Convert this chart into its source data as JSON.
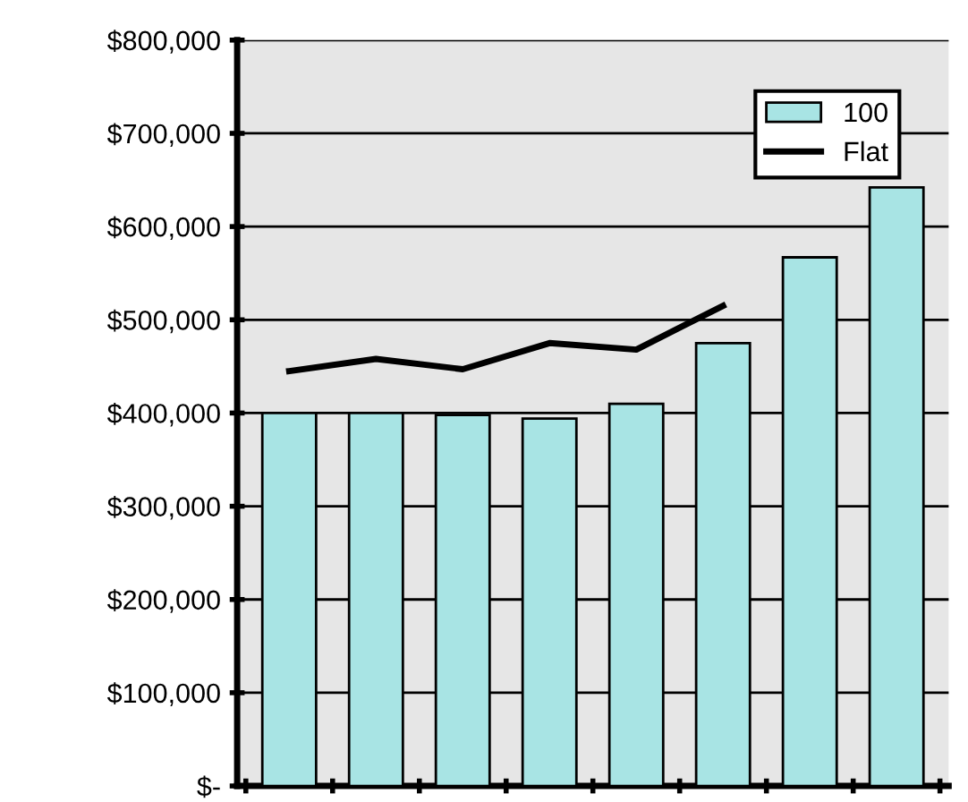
{
  "chart_data": {
    "type": "bar",
    "categories": [
      null,
      null,
      null,
      null,
      null,
      null,
      null,
      null
    ],
    "series": [
      {
        "name": "100",
        "color": "#a8e4e4",
        "values": [
          400000,
          400000,
          398000,
          394000,
          410000,
          475000,
          567000,
          642000
        ]
      },
      {
        "name": "Flat",
        "type": "line",
        "color": "#000000",
        "values": [
          445000,
          458000,
          447000,
          475000,
          468000,
          515000,
          null,
          null
        ]
      }
    ],
    "ylim": [
      0,
      800000
    ],
    "yticks": [
      {
        "value": 0,
        "label": "$-"
      },
      {
        "value": 100000,
        "label": "$100,000"
      },
      {
        "value": 200000,
        "label": "$200,000"
      },
      {
        "value": 300000,
        "label": "$300,000"
      },
      {
        "value": 400000,
        "label": "$400,000"
      },
      {
        "value": 500000,
        "label": "$500,000"
      },
      {
        "value": 600000,
        "label": "$600,000"
      },
      {
        "value": 700000,
        "label": "$700,000"
      },
      {
        "value": 800000,
        "label": "$800,000"
      }
    ],
    "grid": "y",
    "legend": "top right",
    "line_style": "solid",
    "marker": "none"
  }
}
